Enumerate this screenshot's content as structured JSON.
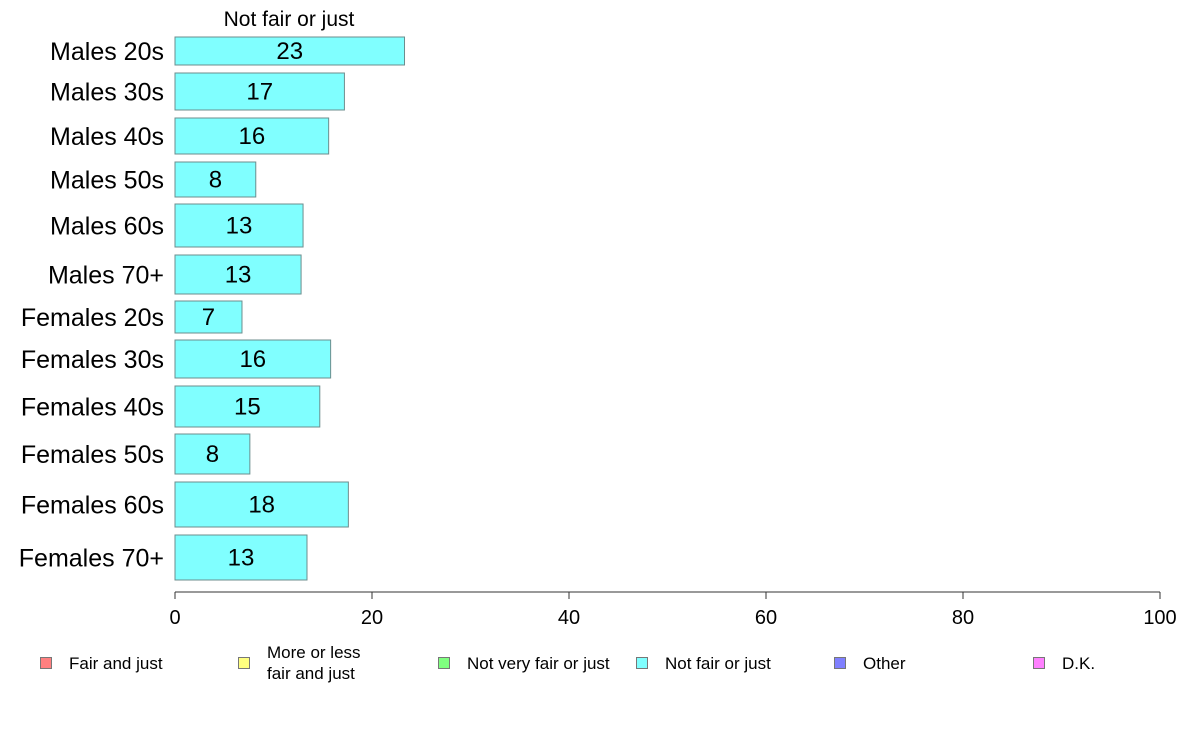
{
  "chart_data": {
    "type": "bar",
    "orientation": "horizontal",
    "panel_title": "Not fair or just",
    "categories": [
      "Males 20s",
      "Males 30s",
      "Males 40s",
      "Males 50s",
      "Males 60s",
      "Males 70+",
      "Females 20s",
      "Females 30s",
      "Females 40s",
      "Females 50s",
      "Females 60s",
      "Females 70+"
    ],
    "series": [
      {
        "name": "Not fair or just",
        "color": "#80ffff",
        "values": [
          23.3,
          17.2,
          15.6,
          8.2,
          13.0,
          12.8,
          6.8,
          15.8,
          14.7,
          7.6,
          17.6,
          13.4
        ],
        "labels": [
          "23",
          "17",
          "16",
          "8",
          "13",
          "13",
          "7",
          "16",
          "15",
          "8",
          "18",
          "13"
        ]
      }
    ],
    "xlim": [
      0,
      100
    ],
    "xticks": [
      "0",
      "20",
      "40",
      "60",
      "80",
      "100"
    ],
    "legend": [
      {
        "label": "Fair and just",
        "color": "#ff8080"
      },
      {
        "label": "More or less\nfair and just",
        "color": "#ffff80"
      },
      {
        "label": "Not very fair or just",
        "color": "#80ff80"
      },
      {
        "label": "Not fair or just",
        "color": "#80ffff"
      },
      {
        "label": "Other",
        "color": "#8080ff"
      },
      {
        "label": "D.K.",
        "color": "#ff80ff"
      }
    ],
    "legend_position": "bottom",
    "grid": false
  }
}
